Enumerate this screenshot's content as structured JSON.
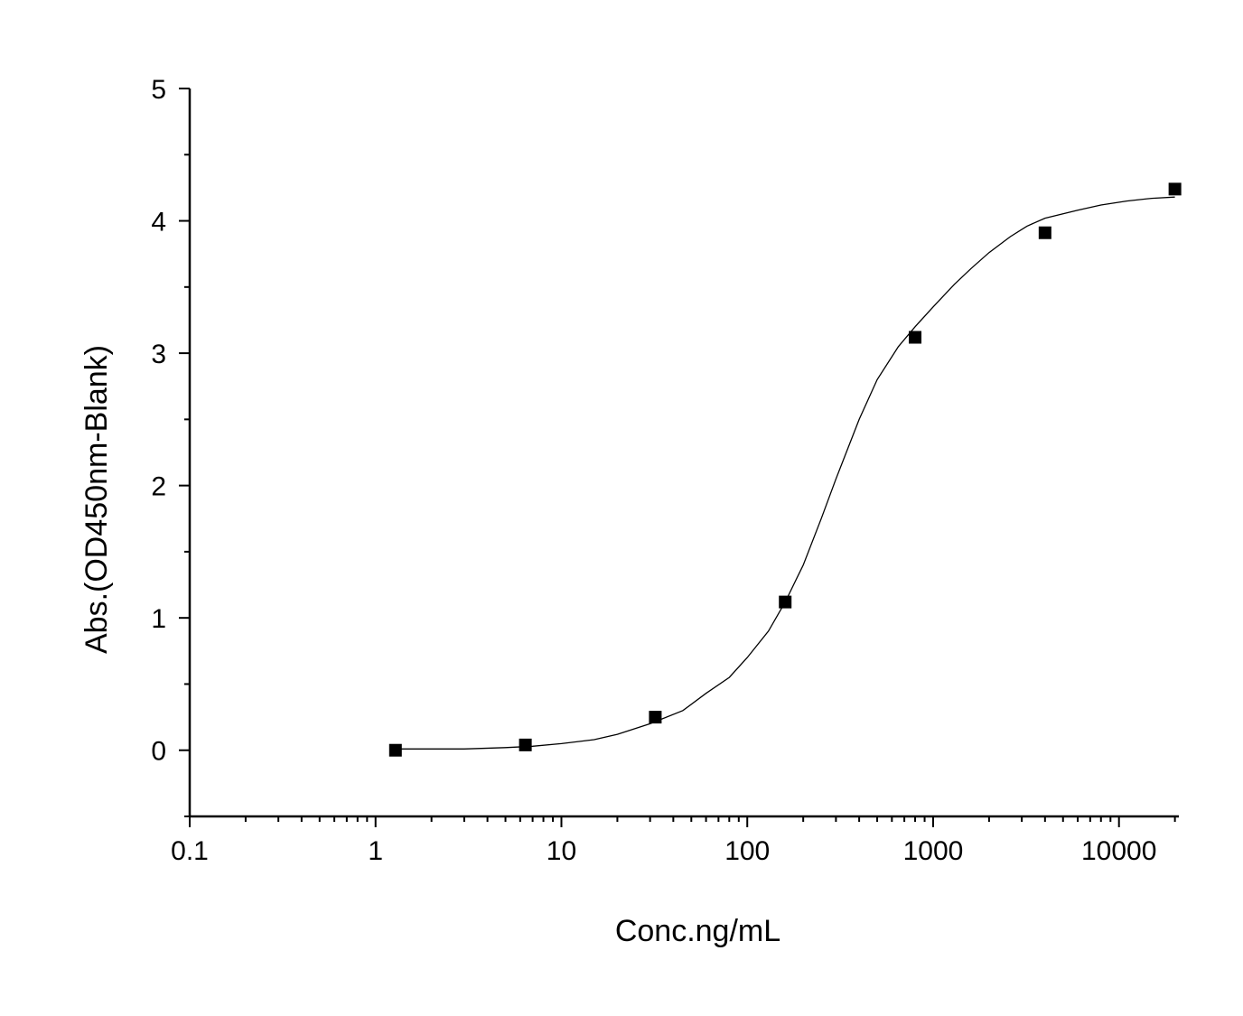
{
  "chart_data": {
    "type": "scatter",
    "xlabel": "Conc.ng/mL",
    "ylabel": "Abs.(OD450nm-Blank)",
    "x_scale": "log",
    "xlim": [
      0.1,
      21000
    ],
    "ylim": [
      -0.5,
      5
    ],
    "x_ticks": [
      0.1,
      1,
      10,
      100,
      1000,
      10000
    ],
    "x_tick_labels": [
      "0.1",
      "1",
      "10",
      "100",
      "1000",
      "10000"
    ],
    "y_ticks": [
      0,
      1,
      2,
      3,
      4,
      5
    ],
    "y_tick_labels": [
      "0",
      "1",
      "2",
      "3",
      "4",
      "5"
    ],
    "grid": false,
    "series": [
      {
        "marker": "square",
        "color": "#000000",
        "x": [
          1.28,
          6.4,
          32,
          160,
          800,
          4000,
          20000
        ],
        "y": [
          0.0,
          0.04,
          0.25,
          1.12,
          3.12,
          3.91,
          4.24
        ]
      }
    ],
    "fit_curve": {
      "type": "4PL",
      "color": "#000000",
      "x": [
        1.28,
        2,
        3,
        5,
        7,
        10,
        15,
        20,
        30,
        45,
        60,
        80,
        100,
        130,
        160,
        200,
        250,
        300,
        400,
        500,
        650,
        800,
        1000,
        1300,
        1600,
        2000,
        2600,
        3200,
        4000,
        6000,
        8000,
        11000,
        15000,
        20000
      ],
      "y": [
        0.01,
        0.01,
        0.01,
        0.02,
        0.03,
        0.05,
        0.08,
        0.12,
        0.2,
        0.3,
        0.43,
        0.55,
        0.7,
        0.9,
        1.12,
        1.4,
        1.75,
        2.05,
        2.5,
        2.8,
        3.05,
        3.2,
        3.35,
        3.52,
        3.64,
        3.76,
        3.88,
        3.96,
        4.02,
        4.08,
        4.12,
        4.15,
        4.17,
        4.18
      ]
    }
  }
}
